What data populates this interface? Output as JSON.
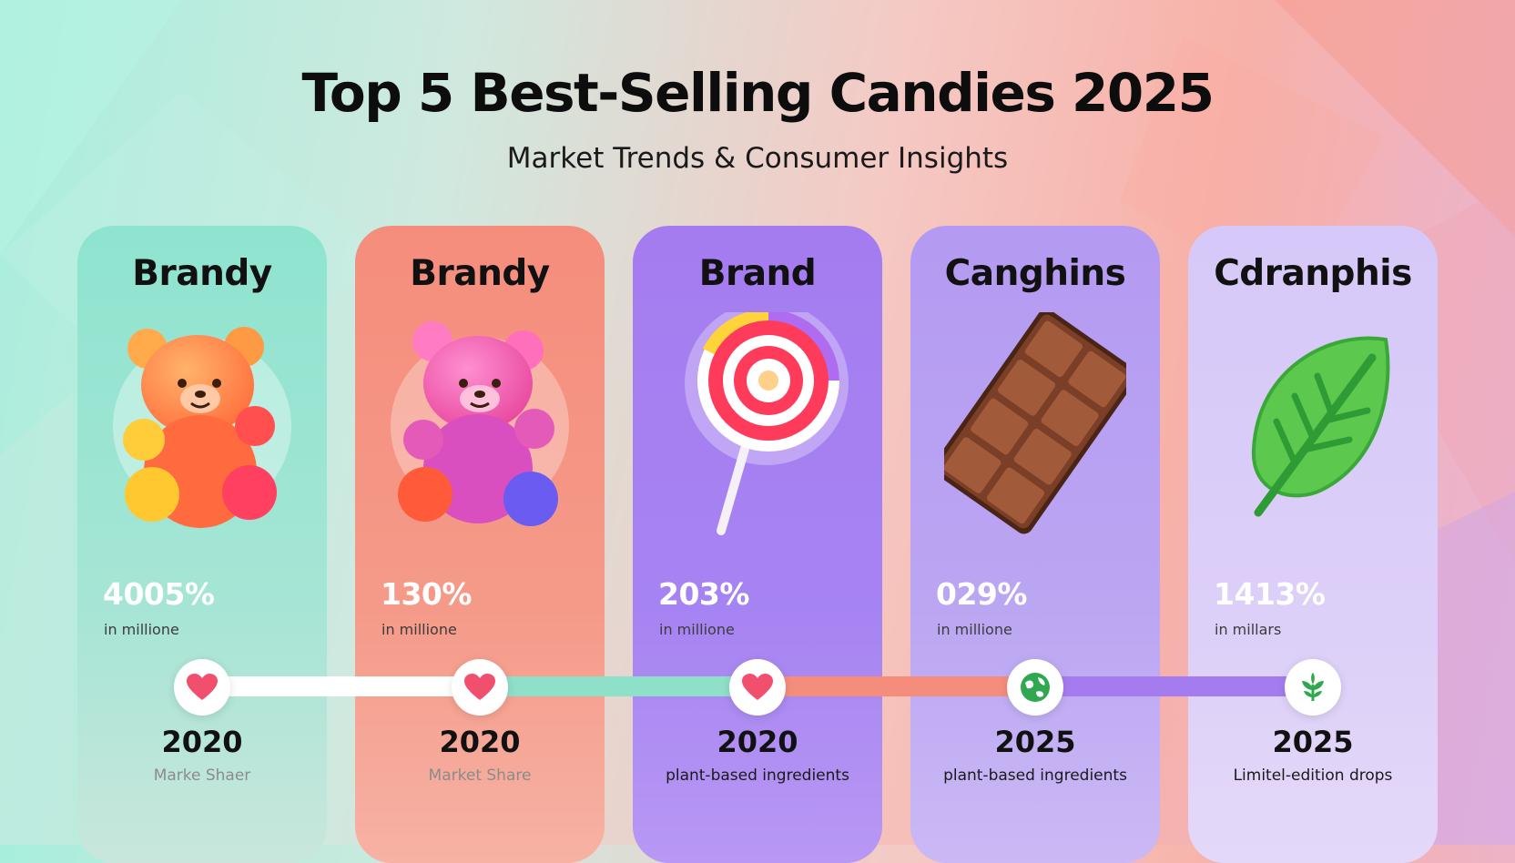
{
  "header": {
    "title": "Top 5 Best-Selling Candies 2025",
    "subtitle": "Market Trends & Consumer Insights"
  },
  "cards": [
    {
      "name": "Brandy",
      "icon": "gummy-bear-orange-icon",
      "stat": "4005%",
      "unit": "in millione",
      "year": "2020",
      "caption": "Marke Shaer",
      "node_icon": "heart-icon"
    },
    {
      "name": "Brandy",
      "icon": "gummy-bear-pink-icon",
      "stat": "130%",
      "unit": "in millione",
      "year": "2020",
      "caption": "Market Share",
      "node_icon": "heart-icon"
    },
    {
      "name": "Brand",
      "icon": "lollipop-icon",
      "stat": "203%",
      "unit": "in millione",
      "year": "2020",
      "caption": "plant-based ingredients",
      "node_icon": "heart-icon"
    },
    {
      "name": "Canghins",
      "icon": "chocolate-bar-icon",
      "stat": "029%",
      "unit": "in millione",
      "year": "2025",
      "caption": "plant-based ingredients",
      "node_icon": "globe-icon"
    },
    {
      "name": "Cdranphis",
      "icon": "leaf-icon",
      "stat": "1413%",
      "unit": "in millars",
      "year": "2025",
      "caption": "Limitel-edition drops",
      "node_icon": "plant-icon"
    }
  ],
  "colors": {
    "mint": "#8ee4cf",
    "coral": "#f58d7c",
    "purple": "#a57cf0",
    "heart": "#f0506e",
    "green": "#2fa84f"
  }
}
